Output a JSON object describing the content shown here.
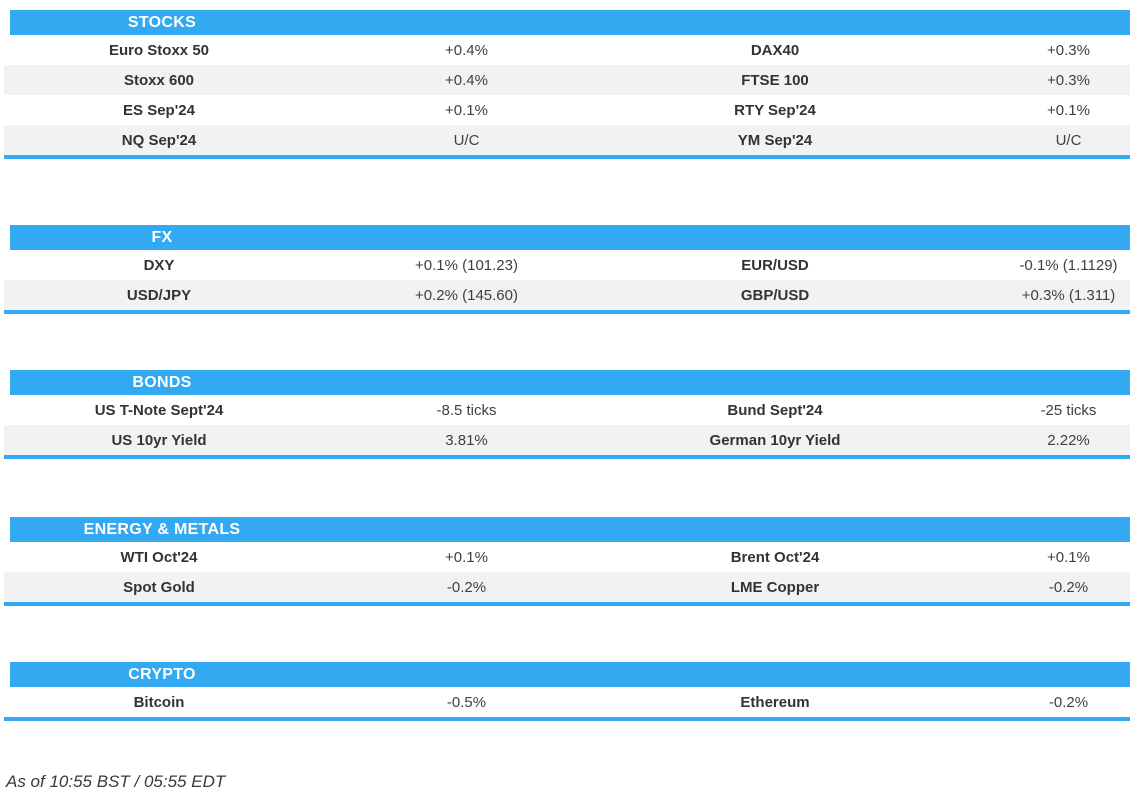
{
  "colors": {
    "accent": "#32A9F0",
    "row_alt": "#F2F2F2",
    "label": "#333333",
    "value": "#404040",
    "header_text": "#FFFFFF"
  },
  "sections": [
    {
      "title": "STOCKS",
      "rows": [
        {
          "label_left": "Euro Stoxx 50",
          "value_left": "+0.4%",
          "label_right": "DAX40",
          "value_right": "+0.3%"
        },
        {
          "label_left": "Stoxx 600",
          "value_left": "+0.4%",
          "label_right": "FTSE 100",
          "value_right": "+0.3%"
        },
        {
          "label_left": "ES Sep'24",
          "value_left": "+0.1%",
          "label_right": "RTY Sep'24",
          "value_right": "+0.1%"
        },
        {
          "label_left": "NQ Sep'24",
          "value_left": "U/C",
          "label_right": "YM Sep'24",
          "value_right": "U/C"
        }
      ]
    },
    {
      "title": "FX",
      "rows": [
        {
          "label_left": "DXY",
          "value_left": "+0.1% (101.23)",
          "label_right": "EUR/USD",
          "value_right": "-0.1% (1.1129)"
        },
        {
          "label_left": "USD/JPY",
          "value_left": "+0.2% (145.60)",
          "label_right": "GBP/USD",
          "value_right": "+0.3% (1.311)"
        }
      ]
    },
    {
      "title": "BONDS",
      "rows": [
        {
          "label_left": "US T-Note Sept'24",
          "value_left": "-8.5 ticks",
          "label_right": "Bund Sept'24",
          "value_right": "-25 ticks"
        },
        {
          "label_left": "US 10yr Yield",
          "value_left": "3.81%",
          "label_right": "German 10yr Yield",
          "value_right": "2.22%"
        }
      ]
    },
    {
      "title": "ENERGY & METALS",
      "rows": [
        {
          "label_left": "WTI Oct'24",
          "value_left": "+0.1%",
          "label_right": "Brent Oct'24",
          "value_right": "+0.1%"
        },
        {
          "label_left": "Spot Gold",
          "value_left": "-0.2%",
          "label_right": "LME Copper",
          "value_right": "-0.2%"
        }
      ]
    },
    {
      "title": "CRYPTO",
      "rows": [
        {
          "label_left": "Bitcoin",
          "value_left": "-0.5%",
          "label_right": "Ethereum",
          "value_right": "-0.2%"
        }
      ]
    }
  ],
  "footer": {
    "timestamp": "As of 10:55 BST / 05:55 EDT"
  }
}
